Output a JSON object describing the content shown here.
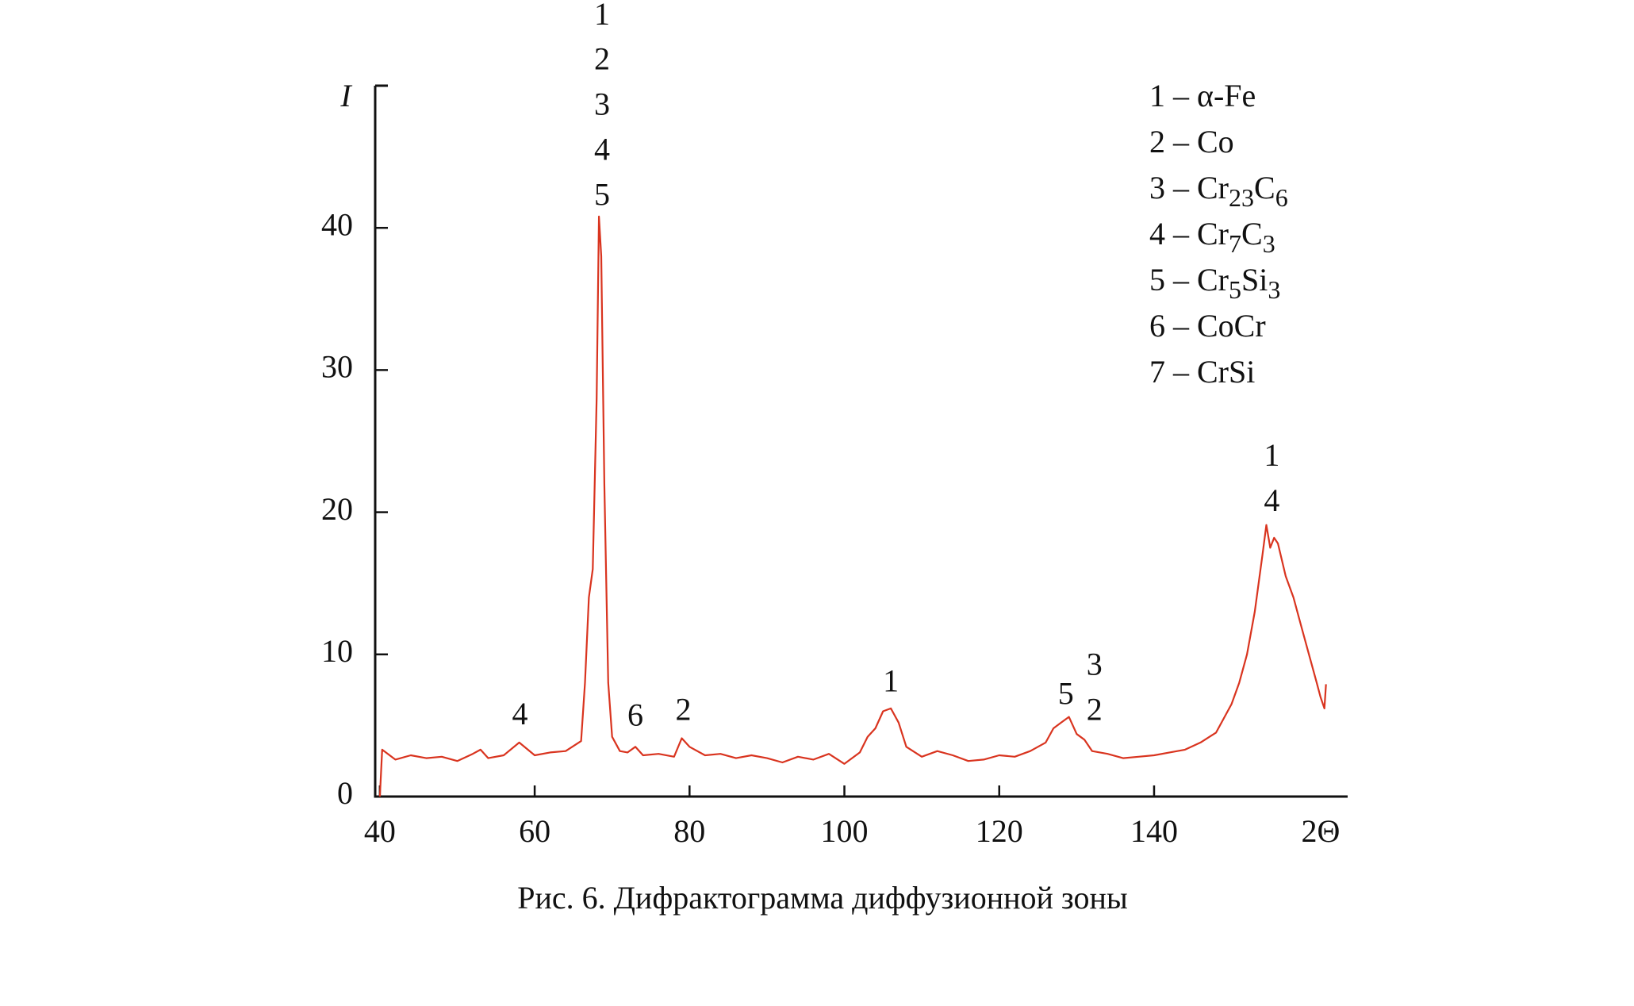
{
  "chart_data": {
    "type": "line",
    "caption": "Рис. 6. Дифрактограмма диффузионной зоны",
    "ylabel": "I",
    "xlabel": "2Θ",
    "xlim": [
      39.4,
      165
    ],
    "ylim": [
      0,
      50
    ],
    "xticks": [
      40,
      60,
      80,
      100,
      120,
      140
    ],
    "yticks": [
      0,
      10,
      20,
      30,
      40
    ],
    "x": [
      40,
      40.3,
      42,
      44,
      46,
      48,
      50,
      52,
      53,
      54,
      56,
      58,
      60,
      62,
      64,
      66,
      66.5,
      67,
      67.5,
      68,
      68.3,
      68.6,
      69,
      69.5,
      70,
      71,
      72,
      73,
      74,
      76,
      78,
      79,
      80,
      82,
      84,
      86,
      88,
      90,
      92,
      94,
      96,
      98,
      100,
      102,
      103,
      104,
      105,
      106,
      107,
      108,
      110,
      112,
      114,
      116,
      118,
      120,
      122,
      124,
      126,
      127,
      128,
      129,
      130,
      131,
      132,
      134,
      136,
      138,
      140,
      142,
      144,
      146,
      148,
      150,
      151,
      152,
      153,
      154,
      154.5,
      155,
      155.5,
      156,
      157,
      158,
      159,
      160,
      161,
      161.5,
      162,
      162.2
    ],
    "series": [
      {
        "color": "#d9341f",
        "values": [
          0,
          3.3,
          2.6,
          2.9,
          2.7,
          2.8,
          2.5,
          3.0,
          3.3,
          2.7,
          2.9,
          3.8,
          2.9,
          3.1,
          3.2,
          3.9,
          8,
          14,
          16,
          28,
          40.8,
          38,
          22,
          8,
          4.2,
          3.2,
          3.1,
          3.5,
          2.9,
          3.0,
          2.8,
          4.1,
          3.5,
          2.9,
          3.0,
          2.7,
          2.9,
          2.7,
          2.4,
          2.8,
          2.6,
          3.0,
          2.3,
          3.1,
          4.2,
          4.8,
          6.0,
          6.2,
          5.2,
          3.5,
          2.8,
          3.2,
          2.9,
          2.5,
          2.6,
          2.9,
          2.8,
          3.2,
          3.8,
          4.8,
          5.2,
          5.6,
          4.4,
          4.0,
          3.2,
          3.0,
          2.7,
          2.8,
          2.9,
          3.1,
          3.3,
          3.8,
          4.5,
          6.5,
          8,
          10,
          13,
          17,
          19.1,
          17.5,
          18.2,
          17.8,
          15.5,
          14,
          12,
          10,
          8,
          7,
          6.2,
          7.9
        ]
      }
    ],
    "annotations": [
      {
        "x": 68.7,
        "y": 42.1,
        "lines": [
          "1",
          "2",
          "3",
          "4",
          "5"
        ]
      },
      {
        "x": 58.1,
        "y": 5.6,
        "lines": [
          "4"
        ]
      },
      {
        "x": 73,
        "y": 5.5,
        "lines": [
          "6"
        ]
      },
      {
        "x": 79.2,
        "y": 5.9,
        "lines": [
          "2"
        ]
      },
      {
        "x": 106,
        "y": 7.9,
        "lines": [
          "1"
        ]
      },
      {
        "x": 128.6,
        "y": 7.0,
        "lines": [
          "5"
        ]
      },
      {
        "x": 132.3,
        "y": 5.9,
        "lines": [
          "3",
          "2"
        ]
      },
      {
        "x": 155.2,
        "y": 20.6,
        "lines": [
          "1",
          "4"
        ]
      }
    ],
    "legend": [
      {
        "parts": [
          {
            "text": "1 – "
          },
          {
            "text": "α-Fe"
          }
        ]
      },
      {
        "parts": [
          {
            "text": "2 – "
          },
          {
            "text": "Co"
          }
        ]
      },
      {
        "parts": [
          {
            "text": "3 – "
          },
          {
            "text": "Cr"
          },
          {
            "text": "23",
            "sub": true
          },
          {
            "text": "C"
          },
          {
            "text": "6",
            "sub": true
          }
        ]
      },
      {
        "parts": [
          {
            "text": "4 – "
          },
          {
            "text": "Cr"
          },
          {
            "text": "7",
            "sub": true
          },
          {
            "text": "C"
          },
          {
            "text": "3",
            "sub": true
          }
        ]
      },
      {
        "parts": [
          {
            "text": "5 – "
          },
          {
            "text": "Cr"
          },
          {
            "text": "5",
            "sub": true
          },
          {
            "text": "Si"
          },
          {
            "text": "3",
            "sub": true
          }
        ]
      },
      {
        "parts": [
          {
            "text": "6 – "
          },
          {
            "text": "CoCr"
          }
        ]
      },
      {
        "parts": [
          {
            "text": "7 – "
          },
          {
            "text": "CrSi"
          }
        ]
      }
    ]
  }
}
